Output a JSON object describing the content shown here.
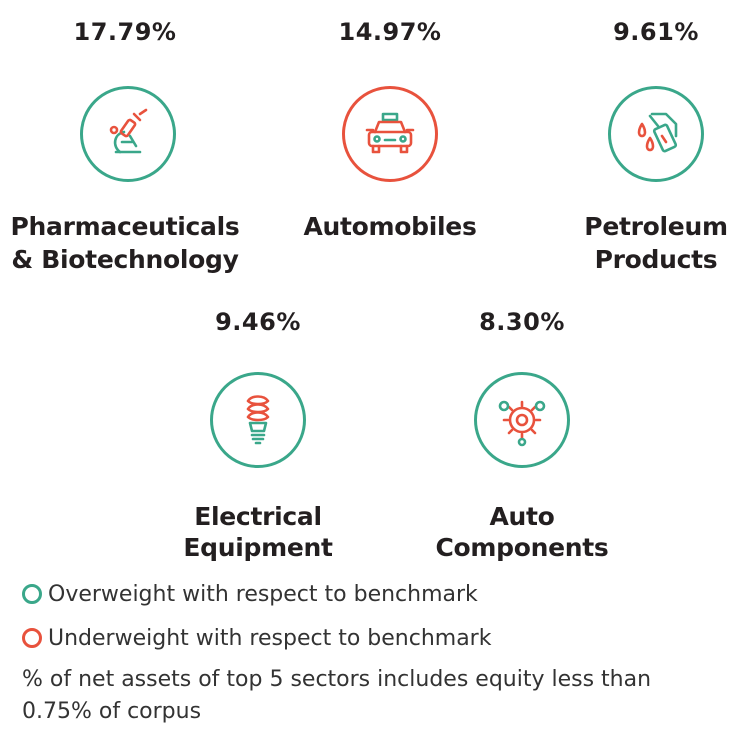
{
  "sectors": [
    {
      "percent": "17.79%",
      "name_line1": "Pharmaceuticals",
      "name_line2": "& Biotechnology",
      "icon": "microscope-icon",
      "weighting": "overweight"
    },
    {
      "percent": "14.97%",
      "name_line1": "Automobiles",
      "name_line2": "",
      "icon": "car-icon",
      "weighting": "underweight"
    },
    {
      "percent": "9.61%",
      "name_line1": "Petroleum",
      "name_line2": "Products",
      "icon": "fuel-nozzle-icon",
      "weighting": "overweight"
    },
    {
      "percent": "9.46%",
      "name_line1": "Electrical",
      "name_line2": "Equipment",
      "icon": "cfl-bulb-icon",
      "weighting": "overweight"
    },
    {
      "percent": "8.30%",
      "name_line1": "Auto",
      "name_line2": "Components",
      "icon": "gears-icon",
      "weighting": "overweight"
    }
  ],
  "legend": {
    "overweight": "Overweight with respect to benchmark",
    "underweight": "Underweight with respect to benchmark"
  },
  "footnote": "% of net assets of top 5 sectors includes equity less than 0.75% of corpus",
  "colors": {
    "overweight": "#3aa78a",
    "underweight": "#e8523d",
    "text": "#231f20"
  }
}
